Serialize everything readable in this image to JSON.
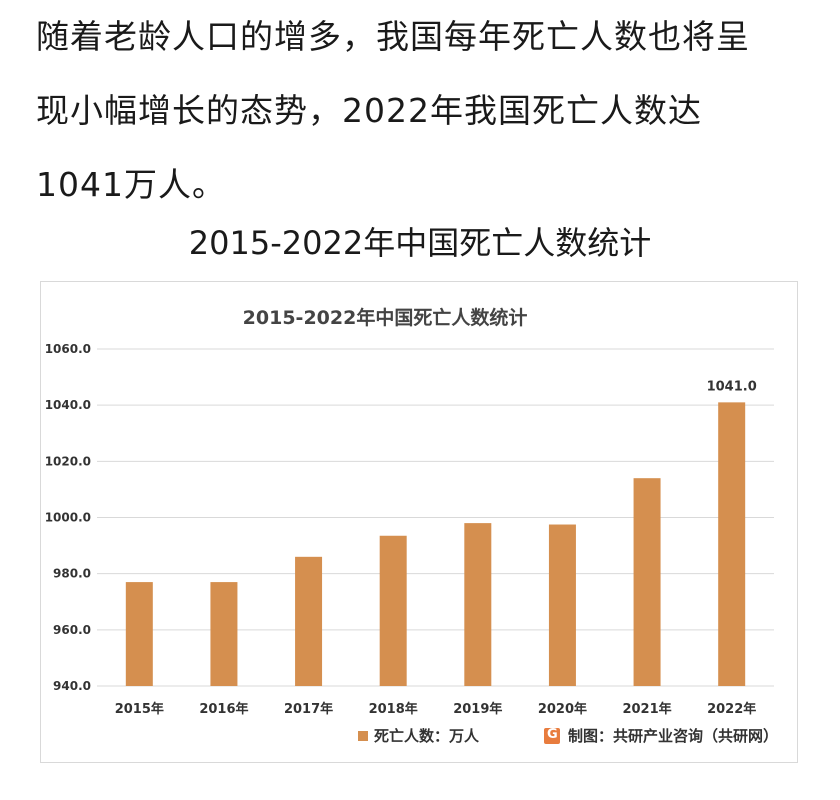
{
  "article": {
    "paragraph": "随着老龄人口的增多，我国每年死亡人数也将呈现小幅增长的态势，2022年我国死亡人数达1041万人。",
    "lines": [
      "随着老龄人口的增多，我国每年死亡人数也将呈",
      "现小幅增长的态势，2022年我国死亡人数达",
      "1041万人。"
    ]
  },
  "caption": "2015-2022年中国死亡人数统计",
  "source": "制图：共研产业咨询（共研网）",
  "colors": {
    "bar": "#D58F4F",
    "grid": "#d9d9d9",
    "text": "#333333"
  },
  "chart_data": {
    "type": "bar",
    "title": "2015-2022年中国死亡人数统计",
    "categories": [
      "2015年",
      "2016年",
      "2017年",
      "2018年",
      "2019年",
      "2020年",
      "2021年",
      "2022年"
    ],
    "series": [
      {
        "name": "死亡人数：万人",
        "values": [
          977.0,
          977.0,
          986.0,
          993.5,
          998.0,
          997.5,
          1014.0,
          1041.0
        ]
      }
    ],
    "data_labels": [
      {
        "category": "2022年",
        "text": "1041.0"
      }
    ],
    "ylim": [
      940,
      1060
    ],
    "yticks": [
      "940.0",
      "960.0",
      "980.0",
      "1000.0",
      "1020.0",
      "1040.0",
      "1060.0"
    ],
    "grid": true,
    "legend": "bottom"
  }
}
